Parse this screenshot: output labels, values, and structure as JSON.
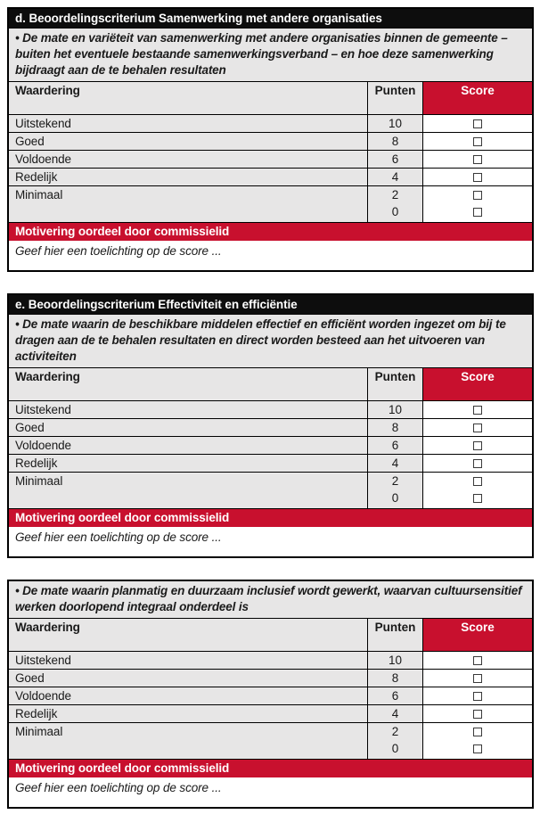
{
  "colors": {
    "accent_red": "#c8102e",
    "header_black": "#0d0d0d",
    "cell_gray": "#e7e6e6"
  },
  "icons": {
    "score_checkbox": "empty-checkbox"
  },
  "sections": [
    {
      "header": "d. Beoordelingscriterium Samenwerking met andere organisaties",
      "description": "• De mate en variëteit van samenwerking met andere organisaties binnen de gemeente – buiten het eventuele bestaande samenwerkingsverband – en hoe deze samenwerking bijdraagt aan de te behalen resultaten",
      "columns": {
        "rating": "Waardering",
        "points": "Punten",
        "score": "Score"
      },
      "rows": [
        {
          "label": "Uitstekend",
          "points": "10"
        },
        {
          "label": "Goed",
          "points": "8"
        },
        {
          "label": "Voldoende",
          "points": "6"
        },
        {
          "label": "Redelijk",
          "points": "4"
        },
        {
          "label": "Minimaal",
          "points": "2",
          "points2": "0"
        }
      ],
      "motivation_header": "Motivering oordeel door commissielid",
      "motivation_placeholder": "Geef hier een toelichting op de score ..."
    },
    {
      "header": "e. Beoordelingscriterium Effectiviteit en efficiëntie",
      "description": "• De mate waarin de beschikbare middelen effectief en efficiënt worden ingezet om bij te dragen aan de te behalen resultaten en direct worden besteed aan het uitvoeren van activiteiten",
      "columns": {
        "rating": "Waardering",
        "points": "Punten",
        "score": "Score"
      },
      "rows": [
        {
          "label": "Uitstekend",
          "points": "10"
        },
        {
          "label": "Goed",
          "points": "8"
        },
        {
          "label": "Voldoende",
          "points": "6"
        },
        {
          "label": "Redelijk",
          "points": "4"
        },
        {
          "label": "Minimaal",
          "points": "2",
          "points2": "0"
        }
      ],
      "motivation_header": "Motivering oordeel door commissielid",
      "motivation_placeholder": "Geef hier een toelichting op de score ..."
    },
    {
      "header": "",
      "description": "• De mate waarin planmatig en duurzaam inclusief wordt gewerkt, waarvan cultuursensitief werken doorlopend integraal onderdeel is",
      "columns": {
        "rating": "Waardering",
        "points": "Punten",
        "score": "Score"
      },
      "rows": [
        {
          "label": "Uitstekend",
          "points": "10"
        },
        {
          "label": "Goed",
          "points": "8"
        },
        {
          "label": "Voldoende",
          "points": "6"
        },
        {
          "label": "Redelijk",
          "points": "4"
        },
        {
          "label": "Minimaal",
          "points": "2",
          "points2": "0"
        }
      ],
      "motivation_header": "Motivering oordeel door commissielid",
      "motivation_placeholder": "Geef hier een toelichting op de score ..."
    }
  ]
}
